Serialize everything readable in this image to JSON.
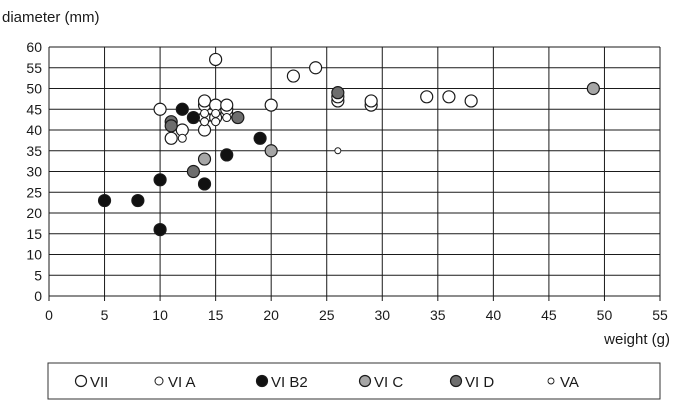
{
  "chart_data": {
    "type": "scatter",
    "title": "",
    "ylabel": "diameter (mm)",
    "xlabel": "weight (g)",
    "xlim": [
      0,
      55
    ],
    "ylim": [
      0,
      60
    ],
    "xticks": [
      0,
      5,
      10,
      15,
      20,
      25,
      30,
      35,
      40,
      45,
      50,
      55
    ],
    "yticks": [
      0,
      5,
      10,
      15,
      20,
      25,
      30,
      35,
      40,
      45,
      50,
      55,
      60
    ],
    "grid": "horizontal and vertical",
    "legend_position": "bottom",
    "series": [
      {
        "name": "VII",
        "marker": "large-circle",
        "color": "#ffffff",
        "points": [
          [
            10,
            45
          ],
          [
            11,
            38
          ],
          [
            12,
            40
          ],
          [
            14,
            40
          ],
          [
            14,
            43
          ],
          [
            14,
            46
          ],
          [
            14,
            47
          ],
          [
            15,
            57
          ],
          [
            15,
            46
          ],
          [
            15,
            43
          ],
          [
            16,
            44
          ],
          [
            16,
            45
          ],
          [
            16,
            46
          ],
          [
            20,
            46
          ],
          [
            22,
            53
          ],
          [
            24,
            55
          ],
          [
            26,
            47
          ],
          [
            26,
            48
          ],
          [
            29,
            46
          ],
          [
            29,
            47
          ],
          [
            34,
            48
          ],
          [
            36,
            48
          ],
          [
            38,
            47
          ]
        ]
      },
      {
        "name": "VI A",
        "marker": "small-circle",
        "color": "#ffffff",
        "points": [
          [
            12,
            38
          ],
          [
            14,
            42
          ],
          [
            14,
            44
          ],
          [
            15,
            42
          ],
          [
            15,
            44
          ],
          [
            16,
            43
          ]
        ]
      },
      {
        "name": "VI B2",
        "marker": "large-circle",
        "color": "#111111",
        "points": [
          [
            5,
            23
          ],
          [
            8,
            23
          ],
          [
            10,
            28
          ],
          [
            10,
            16
          ],
          [
            12,
            45
          ],
          [
            13,
            43
          ],
          [
            14,
            27
          ],
          [
            16,
            34
          ],
          [
            19,
            38
          ]
        ]
      },
      {
        "name": "VI C",
        "marker": "large-circle",
        "color": "#a6a6a6",
        "points": [
          [
            14,
            33
          ],
          [
            20,
            35
          ],
          [
            49,
            50
          ]
        ]
      },
      {
        "name": "VI D",
        "marker": "large-circle",
        "color": "#6e6e6e",
        "points": [
          [
            11,
            42
          ],
          [
            11,
            41
          ],
          [
            13,
            30
          ],
          [
            17,
            43
          ],
          [
            26,
            49
          ]
        ]
      },
      {
        "name": "VA",
        "marker": "tiny-circle",
        "color": "#ffffff",
        "points": [
          [
            26,
            35
          ]
        ]
      }
    ]
  }
}
